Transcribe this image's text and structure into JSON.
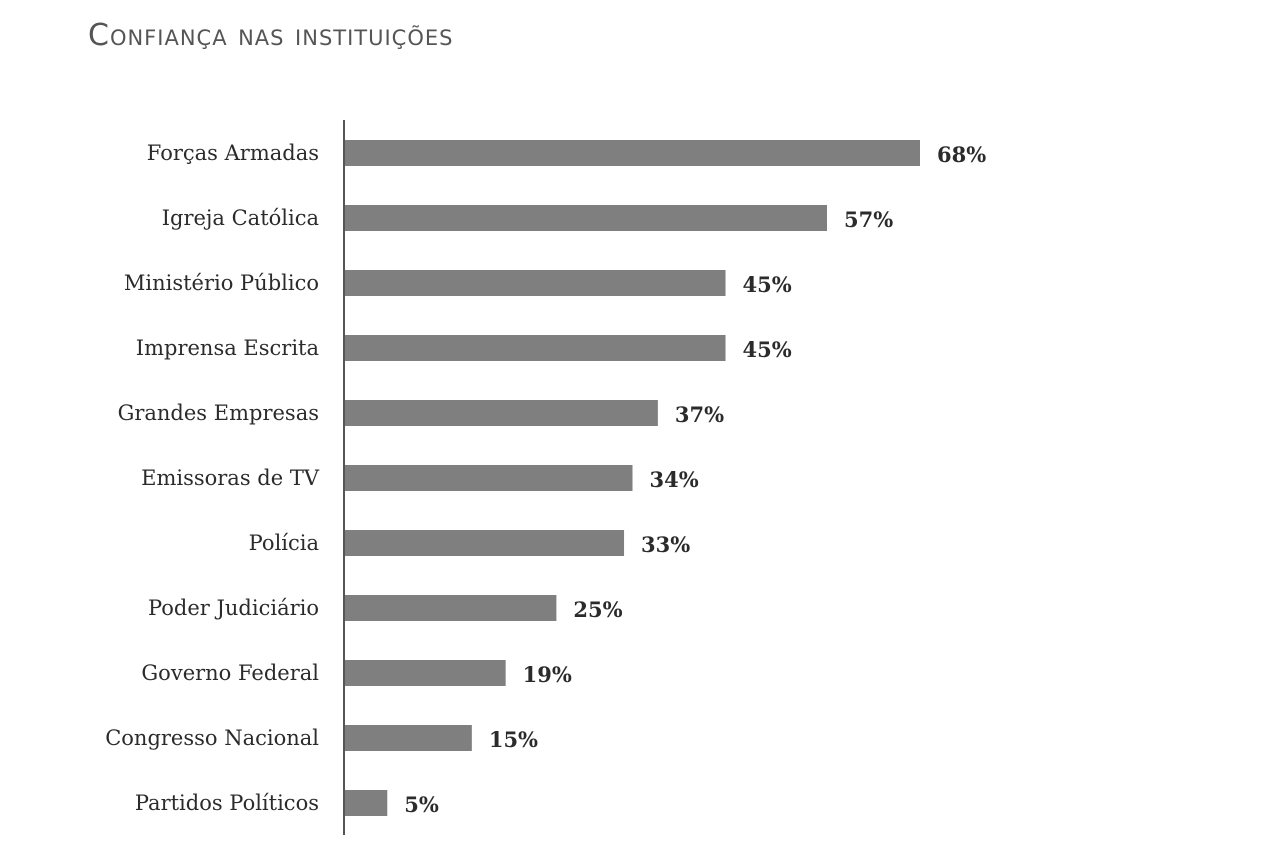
{
  "chart_data": {
    "type": "bar",
    "orientation": "horizontal",
    "title": "Confiança nas instituições",
    "categories": [
      "Forças Armadas",
      "Igreja Católica",
      "Ministério Público",
      "Imprensa Escrita",
      "Grandes Empresas",
      "Emissoras de TV",
      "Polícia",
      "Poder Judiciário",
      "Governo Federal",
      "Congresso Nacional",
      "Partidos Políticos"
    ],
    "values": [
      68,
      57,
      45,
      45,
      37,
      34,
      33,
      25,
      19,
      15,
      5
    ],
    "value_labels": [
      "68%",
      "57%",
      "45%",
      "45%",
      "37%",
      "34%",
      "33%",
      "25%",
      "19%",
      "15%",
      "5%"
    ],
    "xlim": [
      0,
      100
    ],
    "grid": false,
    "legend": "none",
    "bar_color": "#7f7f7f",
    "axis_color": "#555555"
  }
}
